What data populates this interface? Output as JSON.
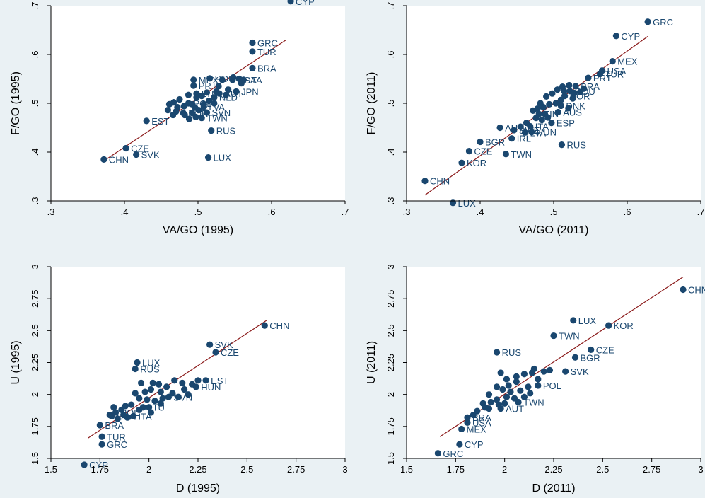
{
  "colors": {
    "background": "#eaf1f4",
    "plot_area": "#ffffff",
    "marker": "#1a476f",
    "label": "#1a476f",
    "fit_line": "#8b1a1a",
    "axis": "#000000"
  },
  "chart_data": [
    {
      "type": "scatter",
      "xlabel": "VA/GO (1995)",
      "ylabel": "F/GO (1995)",
      "xlim": [
        0.3,
        0.7
      ],
      "ylim": [
        0.3,
        0.7
      ],
      "xticks": [
        ".3",
        ".4",
        ".5",
        ".6",
        ".7"
      ],
      "yticks": [
        ".3",
        ".4",
        ".5",
        ".6",
        ".7"
      ],
      "fit_line": {
        "x": [
          0.372,
          0.62
        ],
        "y": [
          0.382,
          0.63
        ]
      },
      "points": [
        {
          "x": 0.626,
          "y": 0.709,
          "label": "CYP"
        },
        {
          "x": 0.574,
          "y": 0.624,
          "label": "GRC"
        },
        {
          "x": 0.574,
          "y": 0.606,
          "label": "TUR"
        },
        {
          "x": 0.574,
          "y": 0.572,
          "label": "BRA"
        },
        {
          "x": 0.372,
          "y": 0.385,
          "label": "CHN"
        },
        {
          "x": 0.402,
          "y": 0.408,
          "label": "CZE"
        },
        {
          "x": 0.416,
          "y": 0.395,
          "label": "SVK"
        },
        {
          "x": 0.43,
          "y": 0.464,
          "label": "EST"
        },
        {
          "x": 0.518,
          "y": 0.444,
          "label": "RUS"
        },
        {
          "x": 0.514,
          "y": 0.389,
          "label": "LUX"
        },
        {
          "x": 0.494,
          "y": 0.548,
          "label": "MEX"
        },
        {
          "x": 0.516,
          "y": 0.551,
          "label": "ROU"
        },
        {
          "x": 0.547,
          "y": 0.548,
          "label": "USA"
        },
        {
          "x": 0.562,
          "y": 0.548,
          "label": "ITA"
        },
        {
          "x": 0.494,
          "y": 0.536,
          "label": "PRT"
        },
        {
          "x": 0.552,
          "y": 0.524,
          "label": "JPN"
        },
        {
          "x": 0.529,
          "y": 0.52,
          "label": "AUT"
        },
        {
          "x": 0.498,
          "y": 0.52,
          "label": "LTU"
        },
        {
          "x": 0.522,
          "y": 0.512,
          "label": "NLD"
        },
        {
          "x": 0.487,
          "y": 0.5,
          "label": "POL"
        },
        {
          "x": 0.508,
          "y": 0.493,
          "label": "LVA"
        },
        {
          "x": 0.48,
          "y": 0.48,
          "label": "KOR"
        },
        {
          "x": 0.512,
          "y": 0.481,
          "label": "SVN"
        },
        {
          "x": 0.505,
          "y": 0.47,
          "label": "TWN"
        },
        {
          "x": 0.533,
          "y": 0.548
        },
        {
          "x": 0.548,
          "y": 0.553
        },
        {
          "x": 0.556,
          "y": 0.55
        },
        {
          "x": 0.559,
          "y": 0.541
        },
        {
          "x": 0.541,
          "y": 0.528
        },
        {
          "x": 0.538,
          "y": 0.517
        },
        {
          "x": 0.525,
          "y": 0.524
        },
        {
          "x": 0.512,
          "y": 0.522
        },
        {
          "x": 0.505,
          "y": 0.515
        },
        {
          "x": 0.498,
          "y": 0.512
        },
        {
          "x": 0.487,
          "y": 0.517
        },
        {
          "x": 0.475,
          "y": 0.508
        },
        {
          "x": 0.467,
          "y": 0.502
        },
        {
          "x": 0.461,
          "y": 0.498
        },
        {
          "x": 0.459,
          "y": 0.486
        },
        {
          "x": 0.472,
          "y": 0.492
        },
        {
          "x": 0.481,
          "y": 0.494
        },
        {
          "x": 0.492,
          "y": 0.498
        },
        {
          "x": 0.496,
          "y": 0.491
        },
        {
          "x": 0.501,
          "y": 0.486
        },
        {
          "x": 0.508,
          "y": 0.498
        },
        {
          "x": 0.492,
          "y": 0.48
        },
        {
          "x": 0.482,
          "y": 0.476
        },
        {
          "x": 0.47,
          "y": 0.483
        },
        {
          "x": 0.466,
          "y": 0.476
        },
        {
          "x": 0.497,
          "y": 0.472
        },
        {
          "x": 0.488,
          "y": 0.468
        },
        {
          "x": 0.515,
          "y": 0.505
        },
        {
          "x": 0.522,
          "y": 0.5
        },
        {
          "x": 0.528,
          "y": 0.535
        }
      ]
    },
    {
      "type": "scatter",
      "xlabel": "VA/GO (2011)",
      "ylabel": "F/GO (2011)",
      "xlim": [
        0.3,
        0.7
      ],
      "ylim": [
        0.3,
        0.7
      ],
      "xticks": [
        ".3",
        ".4",
        ".5",
        ".6",
        ".7"
      ],
      "yticks": [
        ".3",
        ".4",
        ".5",
        ".6",
        ".7"
      ],
      "fit_line": {
        "x": [
          0.325,
          0.628
        ],
        "y": [
          0.312,
          0.637
        ]
      },
      "points": [
        {
          "x": 0.628,
          "y": 0.667,
          "label": "GRC"
        },
        {
          "x": 0.585,
          "y": 0.638,
          "label": "CYP"
        },
        {
          "x": 0.58,
          "y": 0.586,
          "label": "MEX"
        },
        {
          "x": 0.566,
          "y": 0.567,
          "label": "USA"
        },
        {
          "x": 0.563,
          "y": 0.56,
          "label": "TUR"
        },
        {
          "x": 0.547,
          "y": 0.552,
          "label": "PRT"
        },
        {
          "x": 0.53,
          "y": 0.535,
          "label": "BRA"
        },
        {
          "x": 0.522,
          "y": 0.525,
          "label": "ROU"
        },
        {
          "x": 0.515,
          "y": 0.515,
          "label": "NOR"
        },
        {
          "x": 0.51,
          "y": 0.495,
          "label": "DNK"
        },
        {
          "x": 0.506,
          "y": 0.482,
          "label": "AUS"
        },
        {
          "x": 0.48,
          "y": 0.478,
          "label": "FIN"
        },
        {
          "x": 0.497,
          "y": 0.46,
          "label": "ESP"
        },
        {
          "x": 0.468,
          "y": 0.453,
          "label": "ITA"
        },
        {
          "x": 0.446,
          "y": 0.445,
          "label": "SWE"
        },
        {
          "x": 0.461,
          "y": 0.44,
          "label": "LVA"
        },
        {
          "x": 0.443,
          "y": 0.428,
          "label": "IRL"
        },
        {
          "x": 0.4,
          "y": 0.421,
          "label": "BGR"
        },
        {
          "x": 0.385,
          "y": 0.402,
          "label": "CZE"
        },
        {
          "x": 0.375,
          "y": 0.378,
          "label": "KOR"
        },
        {
          "x": 0.325,
          "y": 0.341,
          "label": "CHN"
        },
        {
          "x": 0.363,
          "y": 0.296,
          "label": "LUX"
        },
        {
          "x": 0.435,
          "y": 0.396,
          "label": "TWN"
        },
        {
          "x": 0.511,
          "y": 0.415,
          "label": "RUS"
        },
        {
          "x": 0.427,
          "y": 0.45,
          "label": "AUT"
        },
        {
          "x": 0.47,
          "y": 0.441,
          "label": "HUN"
        },
        {
          "x": 0.541,
          "y": 0.53
        },
        {
          "x": 0.536,
          "y": 0.523
        },
        {
          "x": 0.528,
          "y": 0.521
        },
        {
          "x": 0.521,
          "y": 0.537
        },
        {
          "x": 0.512,
          "y": 0.534
        },
        {
          "x": 0.505,
          "y": 0.528
        },
        {
          "x": 0.498,
          "y": 0.52
        },
        {
          "x": 0.49,
          "y": 0.514
        },
        {
          "x": 0.51,
          "y": 0.507
        },
        {
          "x": 0.503,
          "y": 0.5
        },
        {
          "x": 0.494,
          "y": 0.498
        },
        {
          "x": 0.486,
          "y": 0.492
        },
        {
          "x": 0.482,
          "y": 0.5
        },
        {
          "x": 0.478,
          "y": 0.489
        },
        {
          "x": 0.472,
          "y": 0.485
        },
        {
          "x": 0.488,
          "y": 0.478
        },
        {
          "x": 0.492,
          "y": 0.471
        },
        {
          "x": 0.484,
          "y": 0.466
        },
        {
          "x": 0.476,
          "y": 0.47
        },
        {
          "x": 0.52,
          "y": 0.49
        },
        {
          "x": 0.526,
          "y": 0.51
        },
        {
          "x": 0.455,
          "y": 0.452
        },
        {
          "x": 0.463,
          "y": 0.46
        },
        {
          "x": 0.514,
          "y": 0.525
        }
      ]
    },
    {
      "type": "scatter",
      "xlabel": "D (1995)",
      "ylabel": "U (1995)",
      "xlim": [
        1.5,
        3.0
      ],
      "ylim": [
        1.5,
        3.0
      ],
      "xticks": [
        "1.5",
        "1.75",
        "2",
        "2.25",
        "2.5",
        "2.75",
        "3"
      ],
      "yticks": [
        "1.5",
        "1.75",
        "2",
        "2.25",
        "2.5",
        "2.75",
        "3"
      ],
      "fit_line": {
        "x": [
          1.69,
          2.6
        ],
        "y": [
          1.66,
          2.58
        ]
      },
      "points": [
        {
          "x": 2.59,
          "y": 2.54,
          "label": "CHN"
        },
        {
          "x": 2.31,
          "y": 2.39,
          "label": "SVK"
        },
        {
          "x": 2.34,
          "y": 2.33,
          "label": "CZE"
        },
        {
          "x": 1.94,
          "y": 2.25,
          "label": "LUX"
        },
        {
          "x": 1.93,
          "y": 2.2,
          "label": "RUS"
        },
        {
          "x": 2.29,
          "y": 2.11,
          "label": "EST"
        },
        {
          "x": 2.24,
          "y": 2.06,
          "label": "HUN"
        },
        {
          "x": 2.1,
          "y": 1.98,
          "label": "SVN"
        },
        {
          "x": 1.97,
          "y": 1.9,
          "label": "LTU"
        },
        {
          "x": 1.83,
          "y": 1.86,
          "label": "POL"
        },
        {
          "x": 1.81,
          "y": 1.83,
          "label": "USA"
        },
        {
          "x": 1.92,
          "y": 1.83,
          "label": "ITA"
        },
        {
          "x": 1.75,
          "y": 1.76,
          "label": "BRA"
        },
        {
          "x": 1.76,
          "y": 1.67,
          "label": "TUR"
        },
        {
          "x": 1.76,
          "y": 1.61,
          "label": "GRC"
        },
        {
          "x": 1.67,
          "y": 1.45,
          "label": "CYP"
        },
        {
          "x": 2.25,
          "y": 2.11
        },
        {
          "x": 2.22,
          "y": 2.08
        },
        {
          "x": 2.17,
          "y": 2.09
        },
        {
          "x": 2.13,
          "y": 2.11
        },
        {
          "x": 2.09,
          "y": 2.06
        },
        {
          "x": 2.05,
          "y": 2.08
        },
        {
          "x": 2.02,
          "y": 2.09
        },
        {
          "x": 1.96,
          "y": 2.09
        },
        {
          "x": 2.01,
          "y": 2.04
        },
        {
          "x": 1.98,
          "y": 2.02
        },
        {
          "x": 1.93,
          "y": 2.01
        },
        {
          "x": 2.06,
          "y": 2.02
        },
        {
          "x": 2.12,
          "y": 2.01
        },
        {
          "x": 2.15,
          "y": 1.98
        },
        {
          "x": 2.07,
          "y": 1.97
        },
        {
          "x": 2.03,
          "y": 1.95
        },
        {
          "x": 1.99,
          "y": 1.96
        },
        {
          "x": 1.95,
          "y": 1.97
        },
        {
          "x": 1.91,
          "y": 1.92
        },
        {
          "x": 1.88,
          "y": 1.91
        },
        {
          "x": 1.86,
          "y": 1.88
        },
        {
          "x": 1.82,
          "y": 1.9
        },
        {
          "x": 1.8,
          "y": 1.84
        },
        {
          "x": 1.87,
          "y": 1.84
        },
        {
          "x": 1.95,
          "y": 1.88
        },
        {
          "x": 2.0,
          "y": 1.9
        },
        {
          "x": 2.06,
          "y": 1.93
        },
        {
          "x": 2.18,
          "y": 2.04
        },
        {
          "x": 2.2,
          "y": 2.0
        },
        {
          "x": 1.89,
          "y": 1.82
        },
        {
          "x": 1.84,
          "y": 1.81
        },
        {
          "x": 2.01,
          "y": 1.86
        }
      ]
    },
    {
      "type": "scatter",
      "xlabel": "D (2011)",
      "ylabel": "U (2011)",
      "xlim": [
        1.5,
        3.0
      ],
      "ylim": [
        1.5,
        3.0
      ],
      "xticks": [
        "1.5",
        "1.75",
        "2",
        "2.25",
        "2.5",
        "2.75",
        "3"
      ],
      "yticks": [
        "1.5",
        "1.75",
        "2",
        "2.25",
        "2.5",
        "2.75",
        "3"
      ],
      "fit_line": {
        "x": [
          1.67,
          2.91
        ],
        "y": [
          1.67,
          2.92
        ]
      },
      "points": [
        {
          "x": 2.91,
          "y": 2.82,
          "label": "CHN"
        },
        {
          "x": 2.35,
          "y": 2.58,
          "label": "LUX"
        },
        {
          "x": 2.53,
          "y": 2.54,
          "label": "KOR"
        },
        {
          "x": 2.25,
          "y": 2.46,
          "label": "TWN"
        },
        {
          "x": 2.44,
          "y": 2.35,
          "label": "CZE"
        },
        {
          "x": 2.36,
          "y": 2.29,
          "label": "BGR"
        },
        {
          "x": 1.96,
          "y": 2.33,
          "label": "RUS"
        },
        {
          "x": 2.31,
          "y": 2.18,
          "label": "SVK"
        },
        {
          "x": 2.17,
          "y": 2.07,
          "label": "POL"
        },
        {
          "x": 2.07,
          "y": 1.94,
          "label": "TWN"
        },
        {
          "x": 1.98,
          "y": 1.89,
          "label": "AUT"
        },
        {
          "x": 1.81,
          "y": 1.82,
          "label": "BRA"
        },
        {
          "x": 1.81,
          "y": 1.78,
          "label": "USA"
        },
        {
          "x": 1.78,
          "y": 1.73,
          "label": "MEX"
        },
        {
          "x": 1.77,
          "y": 1.61,
          "label": "CYP"
        },
        {
          "x": 1.66,
          "y": 1.54,
          "label": "GRC"
        },
        {
          "x": 2.15,
          "y": 2.2
        },
        {
          "x": 2.14,
          "y": 2.17
        },
        {
          "x": 2.1,
          "y": 2.16
        },
        {
          "x": 2.06,
          "y": 2.14
        },
        {
          "x": 1.98,
          "y": 2.17
        },
        {
          "x": 2.2,
          "y": 2.18
        },
        {
          "x": 2.23,
          "y": 2.19
        },
        {
          "x": 2.06,
          "y": 2.1
        },
        {
          "x": 2.02,
          "y": 2.07
        },
        {
          "x": 2.12,
          "y": 2.06
        },
        {
          "x": 2.08,
          "y": 2.03
        },
        {
          "x": 2.03,
          "y": 2.02
        },
        {
          "x": 1.99,
          "y": 2.04
        },
        {
          "x": 1.96,
          "y": 2.06
        },
        {
          "x": 1.92,
          "y": 2.0
        },
        {
          "x": 1.96,
          "y": 1.96
        },
        {
          "x": 2.01,
          "y": 1.98
        },
        {
          "x": 2.05,
          "y": 1.97
        },
        {
          "x": 1.93,
          "y": 1.94
        },
        {
          "x": 1.89,
          "y": 1.93
        },
        {
          "x": 1.86,
          "y": 1.87
        },
        {
          "x": 1.92,
          "y": 1.89
        },
        {
          "x": 1.97,
          "y": 1.92
        },
        {
          "x": 2.0,
          "y": 1.93
        },
        {
          "x": 2.1,
          "y": 1.98
        },
        {
          "x": 2.13,
          "y": 2.01
        },
        {
          "x": 2.17,
          "y": 2.12
        },
        {
          "x": 2.01,
          "y": 2.12
        },
        {
          "x": 1.9,
          "y": 1.9
        },
        {
          "x": 1.84,
          "y": 1.84
        }
      ]
    }
  ]
}
